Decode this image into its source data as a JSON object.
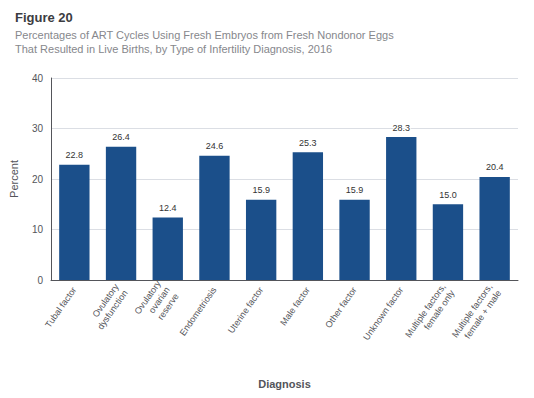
{
  "chart_data": {
    "type": "bar",
    "title": "Figure 20",
    "subtitle": "Percentages of ART Cycles Using Fresh Embryos from Fresh Nondonor Eggs\nThat Resulted in Live Births, by Type of Infertility Diagnosis, 2016",
    "categories": [
      "Tubal factor",
      "Ovulatory\ndysfunction",
      "Ovulatory\novarian\nreserve",
      "Endometriosis",
      "Uterine factor",
      "Male factor",
      "Other factor",
      "Unknown factor",
      "Multiple factors,\nfemale only",
      "Multiple factors,\nfemale + male"
    ],
    "values": [
      22.8,
      26.4,
      12.4,
      24.6,
      15.9,
      25.3,
      15.9,
      28.3,
      15.0,
      20.4
    ],
    "value_labels": [
      "22.8",
      "26.4",
      "12.4",
      "24.6",
      "15.9",
      "25.3",
      "15.9",
      "28.3",
      "15.0",
      "20.4"
    ],
    "color": "#1B4F8A",
    "xlabel": "Diagnosis",
    "ylabel": "Percent",
    "ylim": [
      0,
      40
    ],
    "yticks": [
      0,
      10,
      20,
      30,
      40
    ],
    "grid": true,
    "data_labels": true
  }
}
